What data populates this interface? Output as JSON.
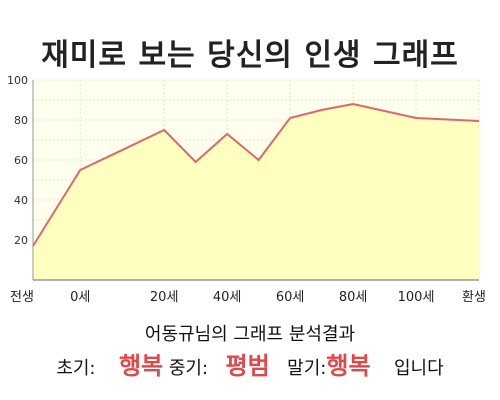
{
  "title": "재미로 보는 당신의 인생 그래프",
  "chart_data": {
    "type": "area",
    "x_labels": [
      "전생",
      "0세",
      "20세",
      "40세",
      "60세",
      "80세",
      "100세",
      "환생"
    ],
    "points": [
      {
        "x": "전생",
        "y": 17
      },
      {
        "x": "0세",
        "y": 55
      },
      {
        "x": "20세",
        "y": 75
      },
      {
        "x": "30세",
        "y": 59
      },
      {
        "x": "40세",
        "y": 73
      },
      {
        "x": "50세",
        "y": 60
      },
      {
        "x": "60세",
        "y": 81
      },
      {
        "x": "70세",
        "y": 85
      },
      {
        "x": "80세",
        "y": 88
      },
      {
        "x": "100세",
        "y": 81
      },
      {
        "x": "환생",
        "y": 79.5
      }
    ],
    "ylim": [
      0,
      100
    ],
    "y_ticks": [
      20,
      40,
      60,
      80,
      100
    ],
    "line_color": "#e0666a",
    "fill_color": "#ffffc0",
    "grid": true
  },
  "summary": {
    "heading": "어동규님의 그래프 분석결과",
    "early_label": "초기:",
    "early_value": "행복",
    "mid_label": "중기:",
    "mid_value": "평범",
    "late_label": "말기:",
    "late_value": "행복",
    "ending": "입니다"
  }
}
